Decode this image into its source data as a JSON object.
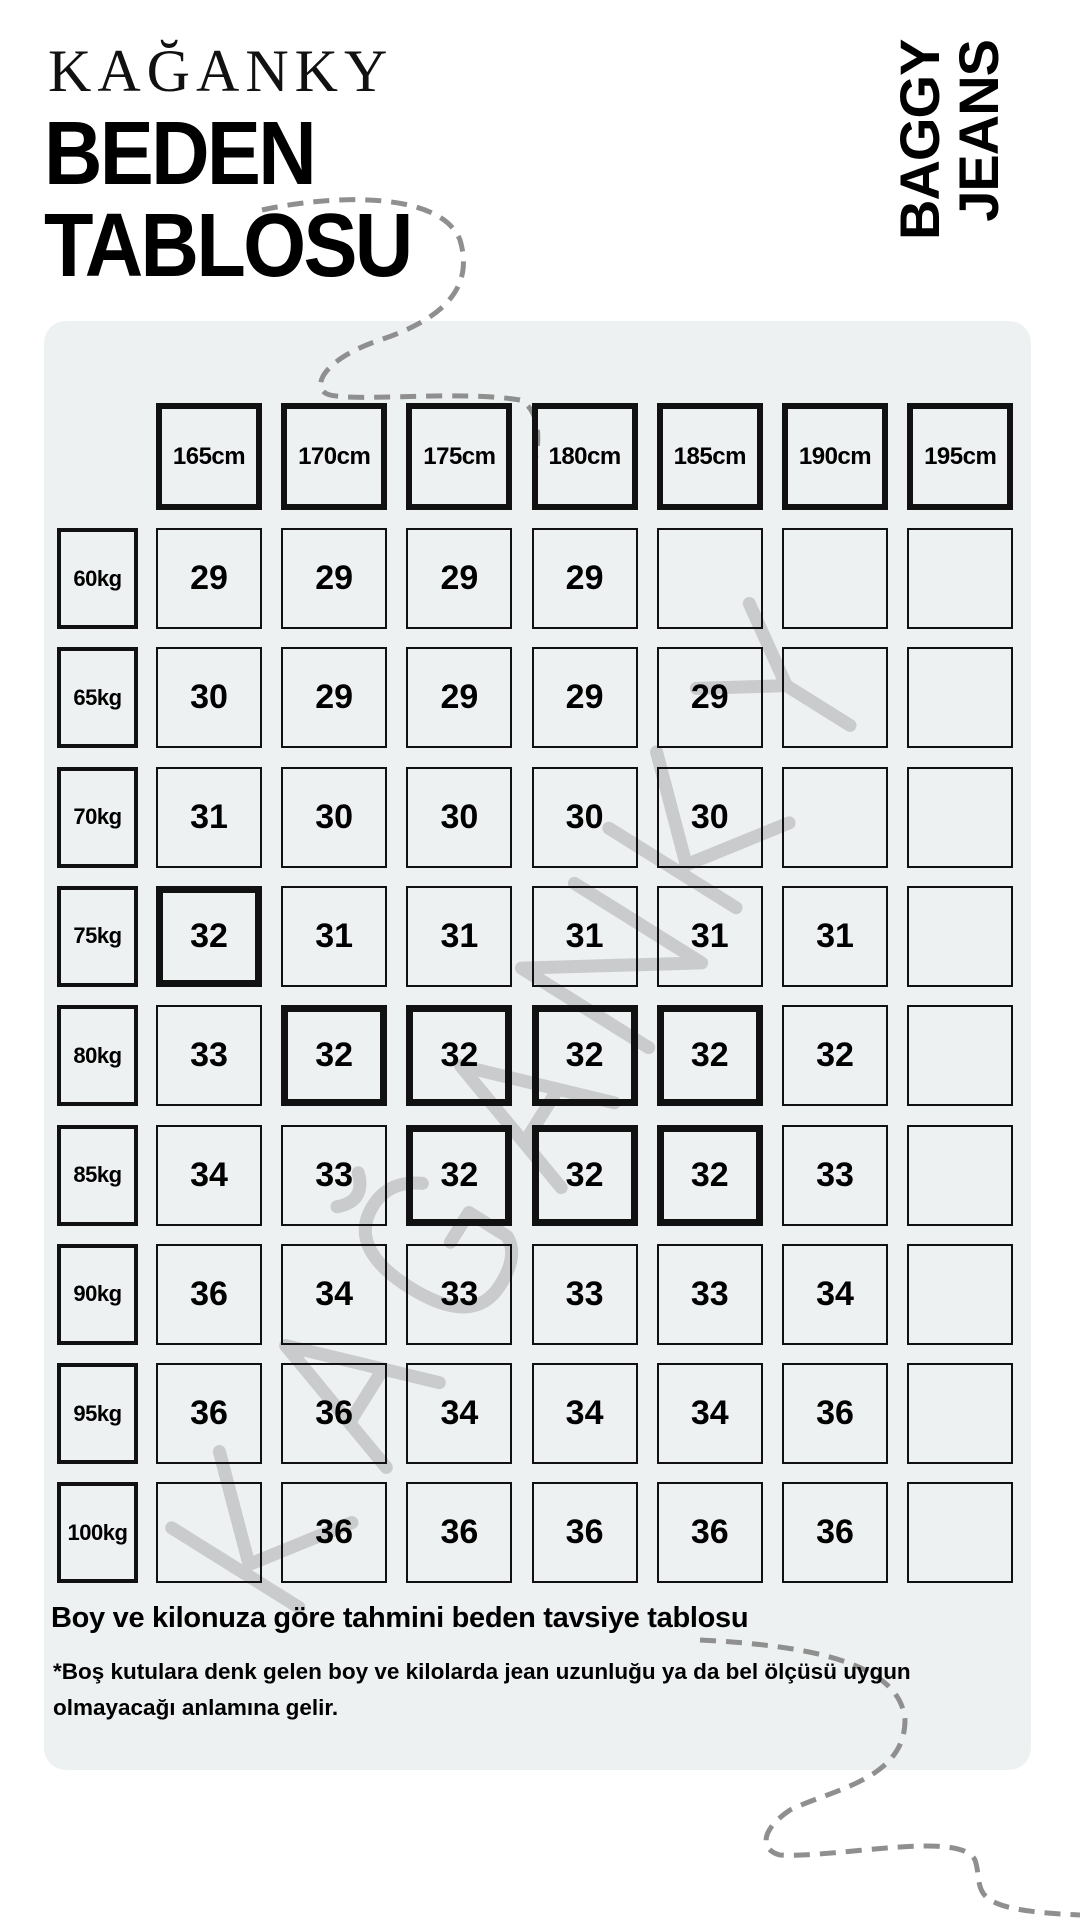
{
  "brand": "KAĞANKY",
  "title": {
    "line1": "BEDEN",
    "line2": "TABLOSU"
  },
  "side_label": {
    "line1": "BAGGY",
    "line2": "JEANS"
  },
  "watermark": "KAĞANKY",
  "colors": {
    "panel": "#eef1f2",
    "ink": "#000000",
    "dash": "#8f8f8f",
    "watermark": "#bfc2c3"
  },
  "size_table": {
    "columns": [
      "165cm",
      "170cm",
      "175cm",
      "180cm",
      "185cm",
      "190cm",
      "195cm"
    ],
    "rows": [
      {
        "label": "60kg",
        "cells": [
          {
            "v": "29"
          },
          {
            "v": "29"
          },
          {
            "v": "29"
          },
          {
            "v": "29"
          },
          {
            "v": ""
          },
          {
            "v": ""
          },
          {
            "v": ""
          }
        ]
      },
      {
        "label": "65kg",
        "cells": [
          {
            "v": "30"
          },
          {
            "v": "29"
          },
          {
            "v": "29"
          },
          {
            "v": "29"
          },
          {
            "v": "29"
          },
          {
            "v": ""
          },
          {
            "v": ""
          }
        ]
      },
      {
        "label": "70kg",
        "cells": [
          {
            "v": "31"
          },
          {
            "v": "30"
          },
          {
            "v": "30"
          },
          {
            "v": "30"
          },
          {
            "v": "30"
          },
          {
            "v": ""
          },
          {
            "v": ""
          }
        ]
      },
      {
        "label": "75kg",
        "cells": [
          {
            "v": "32",
            "highlighted": true
          },
          {
            "v": "31"
          },
          {
            "v": "31"
          },
          {
            "v": "31"
          },
          {
            "v": "31"
          },
          {
            "v": "31"
          },
          {
            "v": ""
          }
        ]
      },
      {
        "label": "80kg",
        "cells": [
          {
            "v": "33"
          },
          {
            "v": "32",
            "highlighted": true
          },
          {
            "v": "32",
            "highlighted": true
          },
          {
            "v": "32",
            "highlighted": true
          },
          {
            "v": "32",
            "highlighted": true
          },
          {
            "v": "32"
          },
          {
            "v": ""
          }
        ]
      },
      {
        "label": "85kg",
        "cells": [
          {
            "v": "34"
          },
          {
            "v": "33"
          },
          {
            "v": "32",
            "highlighted": true
          },
          {
            "v": "32",
            "highlighted": true
          },
          {
            "v": "32",
            "highlighted": true
          },
          {
            "v": "33"
          },
          {
            "v": ""
          }
        ]
      },
      {
        "label": "90kg",
        "cells": [
          {
            "v": "36"
          },
          {
            "v": "34"
          },
          {
            "v": "33"
          },
          {
            "v": "33"
          },
          {
            "v": "33"
          },
          {
            "v": "34"
          },
          {
            "v": ""
          }
        ]
      },
      {
        "label": "95kg",
        "cells": [
          {
            "v": "36"
          },
          {
            "v": "36"
          },
          {
            "v": "34"
          },
          {
            "v": "34"
          },
          {
            "v": "34"
          },
          {
            "v": "36"
          },
          {
            "v": ""
          }
        ]
      },
      {
        "label": "100kg",
        "cells": [
          {
            "v": ""
          },
          {
            "v": "36"
          },
          {
            "v": "36"
          },
          {
            "v": "36"
          },
          {
            "v": "36"
          },
          {
            "v": "36"
          },
          {
            "v": ""
          }
        ]
      }
    ]
  },
  "caption": "Boy ve kilonuza göre tahmini beden tavsiye tablosu",
  "note": "*Boş kutulara denk gelen boy ve kilolarda jean uzunluğu ya da bel ölçüsü uygun olmayacağı anlamına gelir."
}
